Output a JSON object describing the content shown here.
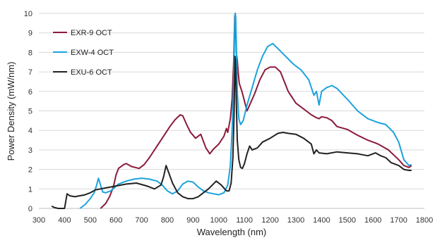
{
  "chart_data": {
    "type": "line",
    "title": "",
    "xlabel": "Wavelength (nm)",
    "ylabel": "Power Density (mW/nm)",
    "xlim": [
      300,
      1800
    ],
    "ylim": [
      0,
      10
    ],
    "xticks": [
      "300",
      "400",
      "500",
      "600",
      "700",
      "800",
      "900",
      "1000",
      "1100",
      "1200",
      "1300",
      "1400",
      "1500",
      "1600",
      "1700",
      "1800"
    ],
    "yticks": [
      "0",
      "1",
      "2",
      "3",
      "4",
      "5",
      "6",
      "7",
      "8",
      "9",
      "10"
    ],
    "grid": "horizontal",
    "legend_position": "top-left",
    "series": [
      {
        "name": "EXR-9 OCT",
        "color": "#8b1a3a",
        "x": [
          540,
          560,
          575,
          590,
          600,
          610,
          620,
          630,
          640,
          660,
          690,
          710,
          730,
          760,
          790,
          810,
          830,
          850,
          860,
          875,
          890,
          910,
          930,
          950,
          965,
          980,
          1000,
          1010,
          1020,
          1030,
          1035,
          1045,
          1052,
          1058,
          1062,
          1064,
          1066,
          1068,
          1072,
          1076,
          1080,
          1090,
          1100,
          1110,
          1120,
          1140,
          1160,
          1180,
          1200,
          1220,
          1240,
          1270,
          1300,
          1330,
          1360,
          1380,
          1390,
          1400,
          1420,
          1440,
          1460,
          1500,
          1540,
          1580,
          1620,
          1660,
          1700,
          1720,
          1740,
          1750
        ],
        "y": [
          0.0,
          0.25,
          0.6,
          1.1,
          1.7,
          2.05,
          2.15,
          2.25,
          2.3,
          2.15,
          2.05,
          2.25,
          2.6,
          3.2,
          3.8,
          4.2,
          4.55,
          4.8,
          4.75,
          4.3,
          3.9,
          3.6,
          3.8,
          3.1,
          2.8,
          3.05,
          3.3,
          3.5,
          3.7,
          4.1,
          3.9,
          4.6,
          5.6,
          7.5,
          9.8,
          10.0,
          9.2,
          8.0,
          7.6,
          6.9,
          6.4,
          6.0,
          5.5,
          5.0,
          5.3,
          5.9,
          6.6,
          7.1,
          7.25,
          7.25,
          7.0,
          6.0,
          5.4,
          5.1,
          4.8,
          4.65,
          4.6,
          4.7,
          4.65,
          4.5,
          4.2,
          4.05,
          3.75,
          3.5,
          3.3,
          3.0,
          2.5,
          2.2,
          2.1,
          2.2
        ]
      },
      {
        "name": "EXW-4 OCT",
        "color": "#1ca3dc",
        "x": [
          460,
          480,
          500,
          515,
          525,
          532,
          540,
          548,
          560,
          580,
          610,
          640,
          670,
          700,
          730,
          760,
          780,
          800,
          820,
          840,
          860,
          880,
          900,
          920,
          940,
          960,
          980,
          1000,
          1020,
          1035,
          1045,
          1052,
          1058,
          1062,
          1064,
          1066,
          1068,
          1072,
          1078,
          1085,
          1095,
          1110,
          1130,
          1150,
          1170,
          1190,
          1210,
          1230,
          1260,
          1290,
          1320,
          1350,
          1370,
          1380,
          1390,
          1400,
          1420,
          1440,
          1460,
          1500,
          1540,
          1580,
          1620,
          1650,
          1680,
          1700,
          1720,
          1740,
          1750
        ],
        "y": [
          0.0,
          0.2,
          0.5,
          0.8,
          1.2,
          1.55,
          1.2,
          0.85,
          0.8,
          0.9,
          1.25,
          1.4,
          1.5,
          1.55,
          1.5,
          1.4,
          1.2,
          0.9,
          0.75,
          0.9,
          1.25,
          1.4,
          1.35,
          1.1,
          0.9,
          0.8,
          0.75,
          0.7,
          0.8,
          1.2,
          2.2,
          4.0,
          6.5,
          9.5,
          10.0,
          9.8,
          8.5,
          6.0,
          4.6,
          4.3,
          4.5,
          5.3,
          6.2,
          7.1,
          7.8,
          8.3,
          8.45,
          8.2,
          7.8,
          7.4,
          7.1,
          6.6,
          5.8,
          6.0,
          5.3,
          6.0,
          6.2,
          6.3,
          6.15,
          5.6,
          5.0,
          4.6,
          4.4,
          4.3,
          3.9,
          3.4,
          2.5,
          2.2,
          2.25
        ]
      },
      {
        "name": "EXU-6 OCT",
        "color": "#222222",
        "x": [
          350,
          360,
          375,
          390,
          400,
          410,
          420,
          440,
          460,
          480,
          500,
          520,
          560,
          600,
          640,
          680,
          720,
          750,
          775,
          785,
          795,
          805,
          820,
          840,
          860,
          880,
          900,
          920,
          940,
          960,
          990,
          1010,
          1030,
          1040,
          1048,
          1055,
          1060,
          1063,
          1065,
          1068,
          1072,
          1078,
          1085,
          1092,
          1100,
          1110,
          1120,
          1130,
          1150,
          1170,
          1200,
          1230,
          1250,
          1270,
          1300,
          1330,
          1360,
          1370,
          1380,
          1390,
          1420,
          1460,
          1500,
          1540,
          1580,
          1610,
          1630,
          1650,
          1670,
          1700,
          1720,
          1740,
          1750
        ],
        "y": [
          0.12,
          0.05,
          0.0,
          0.0,
          0.0,
          0.75,
          0.65,
          0.6,
          0.65,
          0.7,
          0.8,
          0.95,
          1.05,
          1.15,
          1.25,
          1.3,
          1.15,
          1.0,
          1.2,
          1.6,
          2.2,
          1.85,
          1.3,
          0.8,
          0.6,
          0.5,
          0.5,
          0.6,
          0.8,
          1.0,
          1.4,
          1.2,
          0.9,
          0.9,
          1.3,
          2.6,
          5.0,
          7.8,
          7.6,
          5.5,
          3.5,
          2.5,
          2.1,
          2.05,
          2.3,
          2.8,
          3.2,
          3.0,
          3.1,
          3.4,
          3.6,
          3.85,
          3.9,
          3.85,
          3.8,
          3.6,
          3.3,
          2.8,
          3.0,
          2.85,
          2.8,
          2.9,
          2.85,
          2.8,
          2.7,
          2.85,
          2.7,
          2.6,
          2.35,
          2.2,
          2.0,
          1.95,
          1.95
        ]
      }
    ]
  }
}
